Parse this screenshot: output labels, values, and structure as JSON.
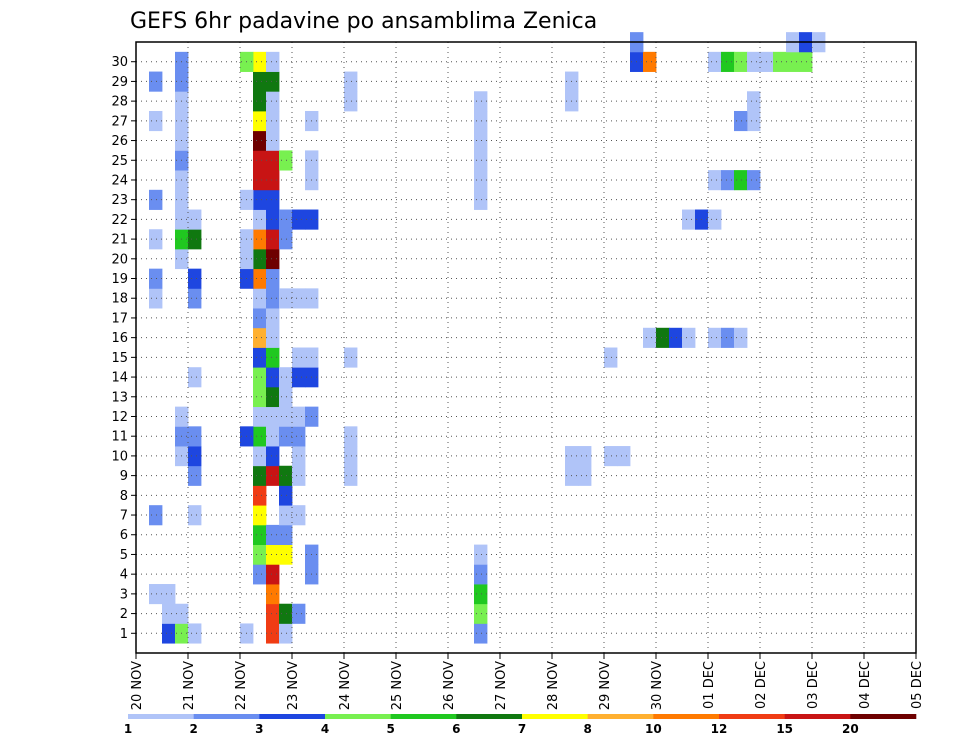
{
  "chart_data": {
    "type": "heatmap",
    "title": "GEFS 6hr padavine po ansamblima Zenica",
    "xlabel": "",
    "ylabel": "",
    "x_ticks": [
      "20 NOV",
      "21 NOV",
      "22 NOV",
      "23 NOV",
      "24 NOV",
      "25 NOV",
      "26 NOV",
      "27 NOV",
      "28 NOV",
      "29 NOV",
      "30 NOV",
      "01 DEC",
      "02 DEC",
      "03 DEC",
      "04 DEC",
      "05 DEC"
    ],
    "y_ticks": [
      "1",
      "2",
      "3",
      "4",
      "5",
      "6",
      "7",
      "8",
      "9",
      "10",
      "11",
      "12",
      "13",
      "14",
      "15",
      "16",
      "17",
      "18",
      "19",
      "20",
      "21",
      "22",
      "23",
      "24",
      "25",
      "26",
      "27",
      "28",
      "29",
      "30"
    ],
    "xlim": [
      0,
      60
    ],
    "ylim": [
      0,
      31
    ],
    "grid": true,
    "legend": {
      "placement": "bottom",
      "thresholds": [
        "1",
        "2",
        "3",
        "4",
        "5",
        "6",
        "7",
        "8",
        "10",
        "12",
        "15",
        "20"
      ],
      "colors": [
        "#b0c4f8",
        "#6a8ef0",
        "#1e46e0",
        "#78f050",
        "#20c820",
        "#107810",
        "#ffff00",
        "#ffb030",
        "#ff7a00",
        "#f03c14",
        "#c81414",
        "#6e0000"
      ]
    },
    "cell_value_unit": "legend_class_index",
    "cells": [
      [
        9,
        4,
        2
      ],
      [
        9,
        5,
        4
      ],
      [
        9,
        6,
        5
      ],
      [
        9,
        7,
        7
      ],
      [
        9,
        8,
        10
      ],
      [
        9,
        9,
        6
      ],
      [
        9,
        10,
        1
      ],
      [
        9,
        11,
        5
      ],
      [
        9,
        12,
        1
      ],
      [
        9,
        13,
        4
      ],
      [
        9,
        14,
        4
      ],
      [
        9,
        15,
        3
      ],
      [
        9,
        16,
        8
      ],
      [
        9,
        17,
        2
      ],
      [
        9,
        18,
        1
      ],
      [
        9,
        19,
        9
      ],
      [
        9,
        20,
        6
      ],
      [
        9,
        21,
        9
      ],
      [
        9,
        22,
        1
      ],
      [
        9,
        23,
        3
      ],
      [
        9,
        24,
        11
      ],
      [
        9,
        25,
        11
      ],
      [
        9,
        26,
        12
      ],
      [
        9,
        27,
        7
      ],
      [
        9,
        28,
        6
      ],
      [
        9,
        29,
        6
      ],
      [
        9,
        30,
        7
      ],
      [
        10,
        1,
        10
      ],
      [
        10,
        2,
        10
      ],
      [
        10,
        3,
        9
      ],
      [
        10,
        4,
        11
      ],
      [
        10,
        5,
        7
      ],
      [
        10,
        6,
        2
      ],
      [
        10,
        9,
        11
      ],
      [
        10,
        10,
        3
      ],
      [
        10,
        11,
        1
      ],
      [
        10,
        12,
        1
      ],
      [
        10,
        13,
        6
      ],
      [
        10,
        14,
        3
      ],
      [
        10,
        15,
        5
      ],
      [
        10,
        16,
        1
      ],
      [
        10,
        17,
        1
      ],
      [
        10,
        18,
        2
      ],
      [
        10,
        19,
        2
      ],
      [
        10,
        20,
        12
      ],
      [
        10,
        21,
        11
      ],
      [
        10,
        22,
        3
      ],
      [
        10,
        23,
        3
      ],
      [
        10,
        24,
        11
      ],
      [
        10,
        25,
        11
      ],
      [
        10,
        26,
        1
      ],
      [
        10,
        27,
        1
      ],
      [
        10,
        28,
        1
      ],
      [
        10,
        29,
        6
      ],
      [
        10,
        30,
        1
      ],
      [
        11,
        1,
        1
      ],
      [
        11,
        2,
        6
      ],
      [
        11,
        5,
        7
      ],
      [
        11,
        6,
        2
      ],
      [
        11,
        7,
        1
      ],
      [
        11,
        8,
        3
      ],
      [
        11,
        9,
        6
      ],
      [
        11,
        11,
        2
      ],
      [
        11,
        12,
        1
      ],
      [
        11,
        13,
        1
      ],
      [
        11,
        14,
        1
      ],
      [
        11,
        18,
        1
      ],
      [
        11,
        21,
        2
      ],
      [
        11,
        22,
        2
      ],
      [
        11,
        25,
        4
      ],
      [
        12,
        2,
        2
      ],
      [
        12,
        7,
        1
      ],
      [
        12,
        9,
        1
      ],
      [
        12,
        10,
        1
      ],
      [
        12,
        11,
        2
      ],
      [
        12,
        12,
        1
      ],
      [
        12,
        14,
        3
      ],
      [
        12,
        15,
        1
      ],
      [
        12,
        18,
        1
      ],
      [
        12,
        22,
        3
      ],
      [
        13,
        4,
        2
      ],
      [
        13,
        5,
        2
      ],
      [
        13,
        12,
        2
      ],
      [
        13,
        14,
        3
      ],
      [
        13,
        15,
        1
      ],
      [
        13,
        18,
        1
      ],
      [
        13,
        22,
        3
      ],
      [
        13,
        24,
        1
      ],
      [
        13,
        25,
        1
      ],
      [
        13,
        27,
        1
      ],
      [
        26,
        1,
        2
      ],
      [
        26,
        2,
        4
      ],
      [
        26,
        3,
        5
      ],
      [
        26,
        4,
        2
      ],
      [
        26,
        5,
        1
      ],
      [
        26,
        23,
        1
      ],
      [
        26,
        24,
        1
      ],
      [
        26,
        25,
        1
      ],
      [
        26,
        26,
        1
      ],
      [
        26,
        27,
        1
      ],
      [
        26,
        28,
        1
      ],
      [
        2,
        1,
        3
      ],
      [
        2,
        2,
        1
      ],
      [
        2,
        3,
        1
      ],
      [
        3,
        1,
        4
      ],
      [
        3,
        2,
        1
      ],
      [
        3,
        10,
        1
      ],
      [
        3,
        11,
        2
      ],
      [
        3,
        12,
        1
      ],
      [
        3,
        20,
        1
      ],
      [
        3,
        21,
        5
      ],
      [
        3,
        22,
        1
      ],
      [
        3,
        23,
        1
      ],
      [
        3,
        24,
        1
      ],
      [
        3,
        25,
        2
      ],
      [
        3,
        26,
        1
      ],
      [
        3,
        27,
        1
      ],
      [
        3,
        28,
        1
      ],
      [
        3,
        29,
        2
      ],
      [
        3,
        30,
        2
      ],
      [
        4,
        1,
        1
      ],
      [
        4,
        7,
        1
      ],
      [
        4,
        9,
        2
      ],
      [
        4,
        10,
        3
      ],
      [
        4,
        11,
        2
      ],
      [
        4,
        14,
        1
      ],
      [
        4,
        18,
        2
      ],
      [
        4,
        19,
        3
      ],
      [
        4,
        21,
        6
      ],
      [
        4,
        22,
        1
      ],
      [
        1,
        3,
        1
      ],
      [
        1,
        7,
        2
      ],
      [
        1,
        18,
        1
      ],
      [
        1,
        19,
        2
      ],
      [
        1,
        21,
        1
      ],
      [
        1,
        23,
        2
      ],
      [
        1,
        27,
        1
      ],
      [
        1,
        29,
        2
      ],
      [
        8,
        1,
        1
      ],
      [
        8,
        11,
        3
      ],
      [
        8,
        19,
        3
      ],
      [
        8,
        20,
        1
      ],
      [
        8,
        21,
        1
      ],
      [
        8,
        23,
        1
      ],
      [
        8,
        30,
        4
      ],
      [
        16,
        29,
        1
      ],
      [
        16,
        28,
        1
      ],
      [
        16,
        11,
        1
      ],
      [
        16,
        15,
        1
      ],
      [
        16,
        9,
        1
      ],
      [
        16,
        10,
        1
      ],
      [
        33,
        10,
        1
      ],
      [
        33,
        9,
        1
      ],
      [
        34,
        9,
        1
      ],
      [
        34,
        10,
        1
      ],
      [
        33,
        28,
        1
      ],
      [
        33,
        29,
        1
      ],
      [
        36,
        10,
        1
      ],
      [
        37,
        10,
        1
      ],
      [
        36,
        15,
        1
      ],
      [
        39,
        16,
        1
      ],
      [
        40,
        16,
        6
      ],
      [
        41,
        16,
        3
      ],
      [
        42,
        16,
        1
      ],
      [
        44,
        16,
        1
      ],
      [
        45,
        16,
        2
      ],
      [
        46,
        16,
        1
      ],
      [
        42,
        22,
        1
      ],
      [
        43,
        22,
        3
      ],
      [
        44,
        22,
        1
      ],
      [
        44,
        24,
        1
      ],
      [
        45,
        24,
        2
      ],
      [
        46,
        24,
        5
      ],
      [
        47,
        24,
        2
      ],
      [
        47,
        27,
        1
      ],
      [
        46,
        27,
        2
      ],
      [
        47,
        28,
        1
      ],
      [
        44,
        30,
        1
      ],
      [
        45,
        30,
        5
      ],
      [
        46,
        30,
        4
      ],
      [
        47,
        30,
        1
      ],
      [
        48,
        30,
        1
      ],
      [
        49,
        30,
        4
      ],
      [
        50,
        30,
        4
      ],
      [
        51,
        30,
        4
      ],
      [
        50,
        31,
        1
      ],
      [
        51,
        31,
        3
      ],
      [
        52,
        31,
        1
      ],
      [
        38,
        30,
        3
      ],
      [
        39,
        30,
        9
      ],
      [
        38,
        31,
        2
      ]
    ]
  }
}
